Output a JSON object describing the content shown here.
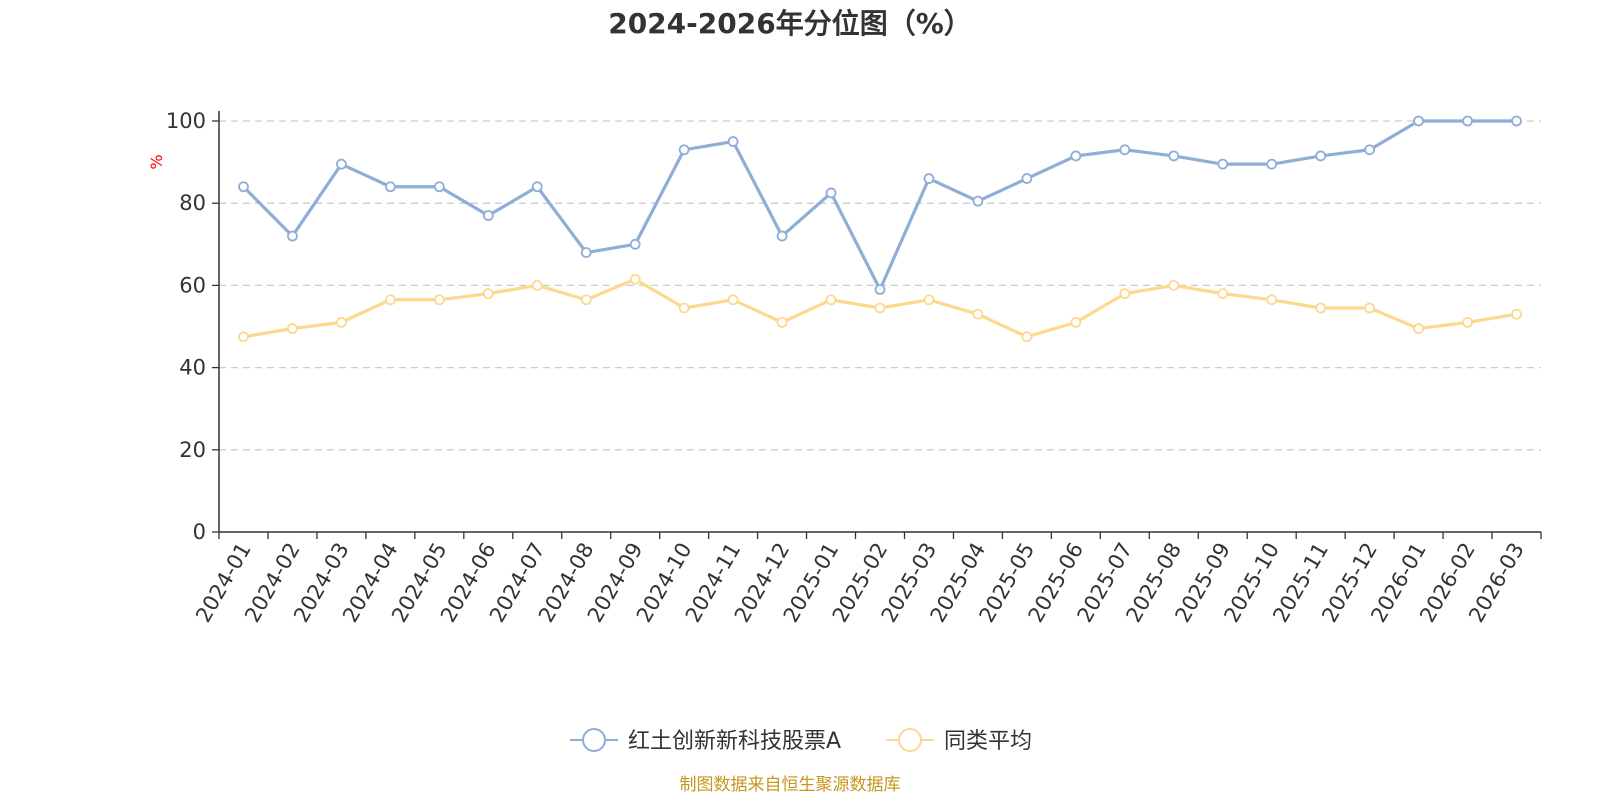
{
  "chart_data": {
    "type": "line",
    "title": "2024-2026年分位图（%）",
    "ylabel": "%",
    "ylim": [
      0,
      100
    ],
    "yticks": [
      0,
      20,
      40,
      60,
      80,
      100
    ],
    "grid": true,
    "legend_position": "bottom-center",
    "categories": [
      "2024-01",
      "2024-02",
      "2024-03",
      "2024-04",
      "2024-05",
      "2024-06",
      "2024-07",
      "2024-08",
      "2024-09",
      "2024-10",
      "2024-11",
      "2024-12",
      "2025-01",
      "2025-02",
      "2025-03",
      "2025-04",
      "2025-05",
      "2025-06",
      "2025-07",
      "2025-08",
      "2025-09",
      "2025-10",
      "2025-11",
      "2025-12",
      "2026-01",
      "2026-02",
      "2026-03"
    ],
    "series": [
      {
        "name": "红土创新新科技股票A",
        "color": "#8eaed8",
        "values": [
          84,
          72,
          89.5,
          84,
          84,
          77,
          84,
          68,
          70,
          93,
          95,
          72,
          82.5,
          59,
          86,
          80.5,
          86,
          91.5,
          93,
          91.5,
          89.5,
          89.5,
          91.5,
          93,
          100,
          100,
          100
        ]
      },
      {
        "name": "同类平均",
        "color": "#fcd98f",
        "values": [
          47.5,
          49.5,
          51,
          56.5,
          56.5,
          58,
          60,
          56.5,
          61.5,
          54.5,
          56.5,
          51,
          56.5,
          54.5,
          56.5,
          53,
          47.5,
          51,
          58,
          60,
          58,
          56.5,
          54.5,
          54.5,
          49.5,
          51,
          53
        ]
      }
    ]
  },
  "source_note": "制图数据来自恒生聚源数据库",
  "colors": {
    "unit_label": "#ff0000",
    "source_note": "#c8961e",
    "axis": "#333333",
    "grid": "#cccccc"
  }
}
